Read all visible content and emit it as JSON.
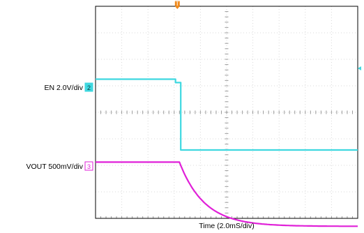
{
  "chart_data": {
    "type": "line",
    "title": "",
    "xlabel": "Time (2.0mS/div)",
    "ylabel": "",
    "time_per_div": "2.0mS/div",
    "horizontal_divisions": 10,
    "vertical_divisions": 8,
    "x_unit": "div",
    "xlim": [
      0,
      10
    ],
    "ylim": [
      0,
      8
    ],
    "grid": true,
    "trigger_marker": "T",
    "series": [
      {
        "name": "EN",
        "channel": "2",
        "scale": "2.0V/div",
        "color": "#3fd8e0",
        "ground_level_div": 2.45,
        "x": [
          0,
          3.05,
          3.05,
          3.25,
          3.25,
          10
        ],
        "y": [
          5.25,
          5.25,
          5.12,
          5.12,
          2.58,
          2.58
        ]
      },
      {
        "name": "VOUT",
        "channel": "3",
        "scale": "500mV/div",
        "color": "#e020d8",
        "ground_level_div": -0.3,
        "x": [
          0,
          3.2,
          3.35,
          3.6,
          3.9,
          4.3,
          4.8,
          5.4,
          6.2,
          7.2,
          8.2,
          10
        ],
        "y": [
          2.12,
          2.12,
          1.85,
          1.45,
          1.05,
          0.62,
          0.22,
          -0.05,
          -0.2,
          -0.27,
          -0.29,
          -0.3
        ]
      }
    ]
  },
  "colors": {
    "grid": "#d9d9d9",
    "border": "#000000",
    "trigger": "#f08a1c"
  }
}
